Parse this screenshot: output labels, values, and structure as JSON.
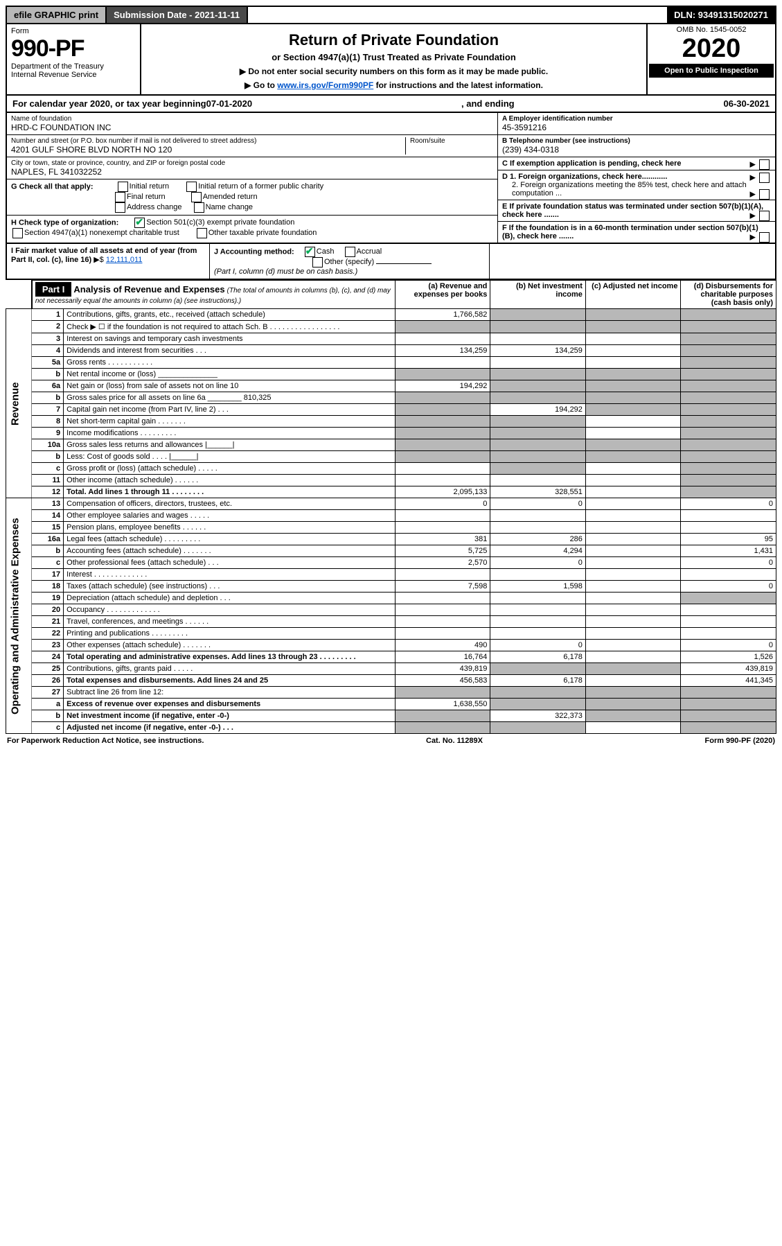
{
  "topbar": {
    "efile": "efile GRAPHIC print",
    "submission_label": "Submission Date - 2021-11-11",
    "dln": "DLN: 93491315020271"
  },
  "header": {
    "form_word": "Form",
    "form_number": "990-PF",
    "dept": "Department of the Treasury",
    "irs": "Internal Revenue Service",
    "title": "Return of Private Foundation",
    "subtitle": "or Section 4947(a)(1) Trust Treated as Private Foundation",
    "warn1": "▶ Do not enter social security numbers on this form as it may be made public.",
    "warn2_prefix": "▶ Go to ",
    "warn2_link": "www.irs.gov/Form990PF",
    "warn2_suffix": " for instructions and the latest information.",
    "omb": "OMB No. 1545-0052",
    "year": "2020",
    "open": "Open to Public Inspection"
  },
  "cal": {
    "prefix": "For calendar year 2020, or tax year beginning ",
    "begin": "07-01-2020",
    "mid": ", and ending ",
    "end": "06-30-2021"
  },
  "entity": {
    "name_label": "Name of foundation",
    "name": "HRD-C FOUNDATION INC",
    "addr_label": "Number and street (or P.O. box number if mail is not delivered to street address)",
    "addr": "4201 GULF SHORE BLVD NORTH NO 120",
    "room_label": "Room/suite",
    "city_label": "City or town, state or province, country, and ZIP or foreign postal code",
    "city": "NAPLES, FL  341032252",
    "ein_label": "A Employer identification number",
    "ein": "45-3591216",
    "tel_label": "B Telephone number (see instructions)",
    "tel": "(239) 434-0318",
    "c_label": "C If exemption application is pending, check here",
    "d1": "D 1. Foreign organizations, check here............",
    "d2": "2. Foreign organizations meeting the 85% test, check here and attach computation ...",
    "e_label": "E  If private foundation status was terminated under section 507(b)(1)(A), check here .......",
    "f_label": "F  If the foundation is in a 60-month termination under section 507(b)(1)(B), check here ......."
  },
  "g": {
    "label": "G Check all that apply:",
    "initial": "Initial return",
    "initial_former": "Initial return of a former public charity",
    "final": "Final return",
    "amended": "Amended return",
    "address": "Address change",
    "name_change": "Name change"
  },
  "h": {
    "label": "H Check type of organization:",
    "s501": "Section 501(c)(3) exempt private foundation",
    "s4947": "Section 4947(a)(1) nonexempt charitable trust",
    "other_tax": "Other taxable private foundation"
  },
  "i": {
    "label": "I Fair market value of all assets at end of year (from Part II, col. (c), line 16)",
    "value": "12,111,011"
  },
  "j": {
    "label": "J Accounting method:",
    "cash": "Cash",
    "accrual": "Accrual",
    "other": "Other (specify)",
    "note": "(Part I, column (d) must be on cash basis.)"
  },
  "part1": {
    "title": "Part I",
    "heading": "Analysis of Revenue and Expenses",
    "heading_note": "(The total of amounts in columns (b), (c), and (d) may not necessarily equal the amounts in column (a) (see instructions).)",
    "col_a": "(a) Revenue and expenses per books",
    "col_b": "(b) Net investment income",
    "col_c": "(c) Adjusted net income",
    "col_d": "(d) Disbursements for charitable purposes (cash basis only)",
    "side_rev": "Revenue",
    "side_exp": "Operating and Administrative Expenses"
  },
  "rows": [
    {
      "n": "1",
      "desc": "Contributions, gifts, grants, etc., received (attach schedule)",
      "a": "1,766,582",
      "b": "",
      "c": "",
      "d": "",
      "shade_b": true,
      "shade_c": true,
      "shade_d": true
    },
    {
      "n": "2",
      "desc": "Check ▶ ☐ if the foundation is not required to attach Sch. B   .  .  .  .  .  .  .  .  .  .  .  .  .  .  .  .  .",
      "a": "",
      "b": "",
      "c": "",
      "d": "",
      "shade_a": true,
      "shade_b": true,
      "shade_c": true,
      "shade_d": true
    },
    {
      "n": "3",
      "desc": "Interest on savings and temporary cash investments",
      "a": "",
      "b": "",
      "c": "",
      "d": "",
      "shade_d": true
    },
    {
      "n": "4",
      "desc": "Dividends and interest from securities   .   .   .",
      "a": "134,259",
      "b": "134,259",
      "c": "",
      "d": "",
      "shade_d": true
    },
    {
      "n": "5a",
      "desc": "Gross rents   .   .   .   .   .   .   .   .   .   .   .",
      "a": "",
      "b": "",
      "c": "",
      "d": "",
      "shade_d": true
    },
    {
      "n": "b",
      "desc": "Net rental income or (loss)  ______________",
      "a": "",
      "b": "",
      "c": "",
      "d": "",
      "shade_a": true,
      "shade_b": true,
      "shade_c": true,
      "shade_d": true
    },
    {
      "n": "6a",
      "desc": "Net gain or (loss) from sale of assets not on line 10",
      "a": "194,292",
      "b": "",
      "c": "",
      "d": "",
      "shade_b": true,
      "shade_c": true,
      "shade_d": true
    },
    {
      "n": "b",
      "desc": "Gross sales price for all assets on line 6a ________ 810,325",
      "a": "",
      "b": "",
      "c": "",
      "d": "",
      "shade_a": true,
      "shade_b": true,
      "shade_c": true,
      "shade_d": true
    },
    {
      "n": "7",
      "desc": "Capital gain net income (from Part IV, line 2)   .   .   .",
      "a": "",
      "b": "194,292",
      "c": "",
      "d": "",
      "shade_a": true,
      "shade_c": true,
      "shade_d": true
    },
    {
      "n": "8",
      "desc": "Net short-term capital gain   .   .   .   .   .   .   .",
      "a": "",
      "b": "",
      "c": "",
      "d": "",
      "shade_a": true,
      "shade_b": true,
      "shade_d": true
    },
    {
      "n": "9",
      "desc": "Income modifications   .   .   .   .   .   .   .   .   .",
      "a": "",
      "b": "",
      "c": "",
      "d": "",
      "shade_a": true,
      "shade_b": true,
      "shade_d": true
    },
    {
      "n": "10a",
      "desc": "Gross sales less returns and allowances  |______|",
      "a": "",
      "b": "",
      "c": "",
      "d": "",
      "shade_a": true,
      "shade_b": true,
      "shade_c": true,
      "shade_d": true
    },
    {
      "n": "b",
      "desc": "Less: Cost of goods sold   .   .   .   .   |______|",
      "a": "",
      "b": "",
      "c": "",
      "d": "",
      "shade_a": true,
      "shade_b": true,
      "shade_c": true,
      "shade_d": true
    },
    {
      "n": "c",
      "desc": "Gross profit or (loss) (attach schedule)   .   .   .   .   .",
      "a": "",
      "b": "",
      "c": "",
      "d": "",
      "shade_b": true,
      "shade_d": true
    },
    {
      "n": "11",
      "desc": "Other income (attach schedule)   .   .   .   .   .   .",
      "a": "",
      "b": "",
      "c": "",
      "d": "",
      "shade_d": true
    },
    {
      "n": "12",
      "desc": "Total. Add lines 1 through 11   .   .   .   .   .   .   .   .",
      "a": "2,095,133",
      "b": "328,551",
      "c": "",
      "d": "",
      "bold": true,
      "shade_d": true
    },
    {
      "n": "13",
      "desc": "Compensation of officers, directors, trustees, etc.",
      "a": "0",
      "b": "0",
      "c": "",
      "d": "0"
    },
    {
      "n": "14",
      "desc": "Other employee salaries and wages   .   .   .   .   .",
      "a": "",
      "b": "",
      "c": "",
      "d": ""
    },
    {
      "n": "15",
      "desc": "Pension plans, employee benefits   .   .   .   .   .   .",
      "a": "",
      "b": "",
      "c": "",
      "d": ""
    },
    {
      "n": "16a",
      "desc": "Legal fees (attach schedule)  .   .   .   .   .   .   .   .   .",
      "a": "381",
      "b": "286",
      "c": "",
      "d": "95"
    },
    {
      "n": "b",
      "desc": "Accounting fees (attach schedule)  .   .   .   .   .   .   .",
      "a": "5,725",
      "b": "4,294",
      "c": "",
      "d": "1,431"
    },
    {
      "n": "c",
      "desc": "Other professional fees (attach schedule)   .   .   .",
      "a": "2,570",
      "b": "0",
      "c": "",
      "d": "0"
    },
    {
      "n": "17",
      "desc": "Interest   .   .   .   .   .   .   .   .   .   .   .   .   .",
      "a": "",
      "b": "",
      "c": "",
      "d": ""
    },
    {
      "n": "18",
      "desc": "Taxes (attach schedule) (see instructions)   .   .   .",
      "a": "7,598",
      "b": "1,598",
      "c": "",
      "d": "0"
    },
    {
      "n": "19",
      "desc": "Depreciation (attach schedule) and depletion   .   .   .",
      "a": "",
      "b": "",
      "c": "",
      "d": "",
      "shade_d": true
    },
    {
      "n": "20",
      "desc": "Occupancy  .   .   .   .   .   .   .   .   .   .   .   .   .",
      "a": "",
      "b": "",
      "c": "",
      "d": ""
    },
    {
      "n": "21",
      "desc": "Travel, conferences, and meetings   .   .   .   .   .   .",
      "a": "",
      "b": "",
      "c": "",
      "d": ""
    },
    {
      "n": "22",
      "desc": "Printing and publications   .   .   .   .   .   .   .   .   .",
      "a": "",
      "b": "",
      "c": "",
      "d": ""
    },
    {
      "n": "23",
      "desc": "Other expenses (attach schedule)  .   .   .   .   .   .   .",
      "a": "490",
      "b": "0",
      "c": "",
      "d": "0"
    },
    {
      "n": "24",
      "desc": "Total operating and administrative expenses. Add lines 13 through 23   .   .   .   .   .   .   .   .   .",
      "a": "16,764",
      "b": "6,178",
      "c": "",
      "d": "1,526",
      "bold": true
    },
    {
      "n": "25",
      "desc": "Contributions, gifts, grants paid   .   .   .   .   .",
      "a": "439,819",
      "b": "",
      "c": "",
      "d": "439,819",
      "shade_b": true,
      "shade_c": true
    },
    {
      "n": "26",
      "desc": "Total expenses and disbursements. Add lines 24 and 25",
      "a": "456,583",
      "b": "6,178",
      "c": "",
      "d": "441,345",
      "bold": true
    },
    {
      "n": "27",
      "desc": "Subtract line 26 from line 12:",
      "a": "",
      "b": "",
      "c": "",
      "d": "",
      "shade_a": true,
      "shade_b": true,
      "shade_c": true,
      "shade_d": true
    },
    {
      "n": "a",
      "desc": "Excess of revenue over expenses and disbursements",
      "a": "1,638,550",
      "b": "",
      "c": "",
      "d": "",
      "bold": true,
      "shade_b": true,
      "shade_c": true,
      "shade_d": true
    },
    {
      "n": "b",
      "desc": "Net investment income (if negative, enter -0-)",
      "a": "",
      "b": "322,373",
      "c": "",
      "d": "",
      "bold": true,
      "shade_a": true,
      "shade_c": true,
      "shade_d": true
    },
    {
      "n": "c",
      "desc": "Adjusted net income (if negative, enter -0-)   .   .   .",
      "a": "",
      "b": "",
      "c": "",
      "d": "",
      "bold": true,
      "shade_a": true,
      "shade_b": true,
      "shade_d": true
    }
  ],
  "footer": {
    "left": "For Paperwork Reduction Act Notice, see instructions.",
    "mid": "Cat. No. 11289X",
    "right": "Form 990-PF (2020)"
  }
}
